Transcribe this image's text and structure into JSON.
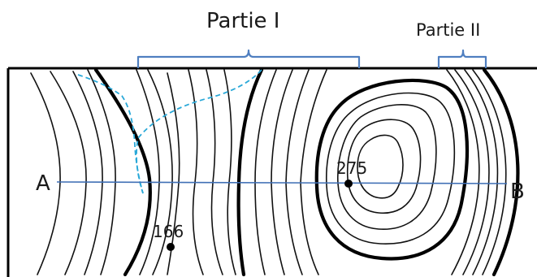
{
  "labels": {
    "partie1": "Partie I",
    "partie2": "Partie II",
    "pointA": "A",
    "pointB": "B",
    "elevation1": "275",
    "elevation2": "166"
  },
  "colors": {
    "brace": "#4f7fc0",
    "profile_line": "#3f6fb5",
    "stream": "#29a8d8",
    "contour": "#111111"
  }
}
